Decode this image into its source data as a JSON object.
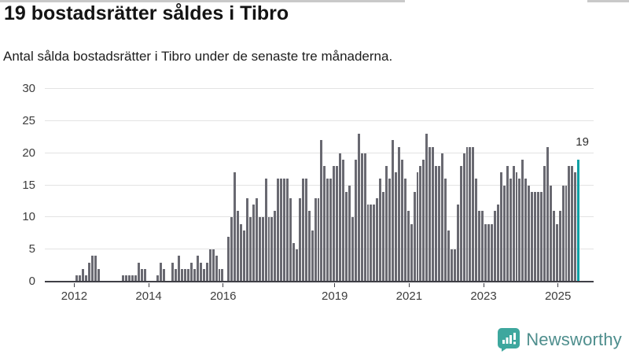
{
  "header": {
    "title": "19 bostadsrätter såldes i Tibro",
    "subtitle": "Antal sålda bostadsrätter i Tibro under de senaste tre månaderna."
  },
  "chart_data": {
    "type": "bar",
    "title": "19 bostadsrätter såldes i Tibro",
    "subtitle": "Antal sålda bostadsrätter i Tibro under de senaste tre månaderna.",
    "ylim": [
      0,
      30
    ],
    "yticks": [
      0,
      5,
      10,
      15,
      20,
      25,
      30
    ],
    "grid": "horizontal",
    "bar_color": "#696971",
    "axis_color": "#3f3f46",
    "gridline_color": "#e3e3e3",
    "x_description": "monthly values from 2011 to 2025, year ticks mark January",
    "xticks": [
      {
        "index": 9,
        "label": "2012"
      },
      {
        "index": 33,
        "label": "2014"
      },
      {
        "index": 57,
        "label": "2016"
      },
      {
        "index": 93,
        "label": "2019"
      },
      {
        "index": 117,
        "label": "2021"
      },
      {
        "index": 141,
        "label": "2023"
      },
      {
        "index": 165,
        "label": "2025"
      }
    ],
    "values": [
      0,
      0,
      0,
      0,
      0,
      0,
      0,
      0,
      0,
      0,
      1,
      1,
      2,
      1,
      3,
      4,
      4,
      2,
      0,
      0,
      0,
      0,
      0,
      0,
      0,
      1,
      1,
      1,
      1,
      1,
      3,
      2,
      2,
      0,
      0,
      0,
      1,
      3,
      2,
      0,
      0,
      3,
      2,
      4,
      2,
      2,
      2,
      3,
      2,
      4,
      3,
      2,
      3,
      5,
      5,
      4,
      2,
      2,
      0,
      7,
      10,
      17,
      11,
      9,
      8,
      13,
      10,
      12,
      13,
      10,
      10,
      16,
      10,
      10,
      11,
      16,
      16,
      16,
      16,
      13,
      6,
      5,
      13,
      16,
      16,
      11,
      8,
      13,
      13,
      22,
      18,
      16,
      16,
      18,
      18,
      20,
      19,
      14,
      15,
      10,
      19,
      23,
      20,
      20,
      12,
      12,
      12,
      13,
      16,
      14,
      18,
      16,
      22,
      17,
      21,
      19,
      16,
      11,
      9,
      14,
      17,
      18,
      19,
      23,
      21,
      21,
      18,
      18,
      20,
      16,
      8,
      5,
      5,
      12,
      18,
      20,
      21,
      21,
      21,
      16,
      11,
      11,
      9,
      9,
      9,
      11,
      12,
      17,
      15,
      18,
      16,
      18,
      17,
      16,
      19,
      16,
      15,
      14,
      14,
      14,
      14,
      18,
      21,
      15,
      11,
      9,
      11,
      15,
      15,
      18,
      18,
      17,
      19,
      0,
      0,
      0,
      0
    ],
    "highlight": {
      "index": 172,
      "value": 19,
      "label": "19",
      "color": "#0ba0a5"
    }
  },
  "footer": {
    "brand": "Newsworthy",
    "icon": "newsworthy-chart-bubble-icon",
    "icon_color": "#3ea79e",
    "text_color": "#4e8e8d"
  }
}
